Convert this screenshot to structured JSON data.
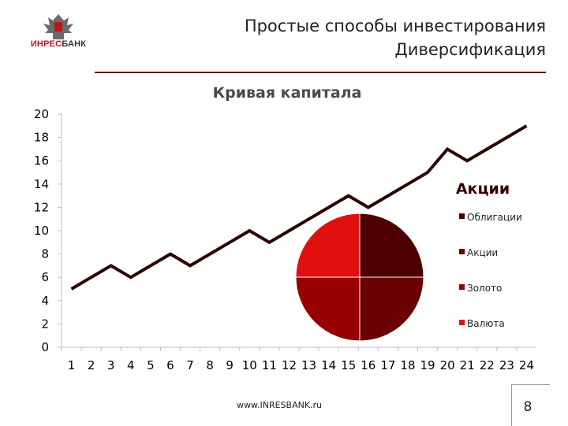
{
  "logo": {
    "text_red": "ИНРЕС",
    "text_dark": "БАНК"
  },
  "header": {
    "title_line1": "Простые способы инвестирования",
    "title_line2": "Диверсификация"
  },
  "footer": {
    "url": "www.INRESBANK.ru",
    "page": "8"
  },
  "colors": {
    "line": "#2b0000",
    "rule": "#5a0000"
  },
  "chart_data": [
    {
      "type": "line",
      "title": "Кривая капитала",
      "x": [
        1,
        2,
        3,
        4,
        5,
        6,
        7,
        8,
        9,
        10,
        11,
        12,
        13,
        14,
        15,
        16,
        17,
        18,
        19,
        20,
        21,
        22,
        23,
        24
      ],
      "categories": [
        "1",
        "2",
        "3",
        "4",
        "5",
        "6",
        "7",
        "8",
        "9",
        "10",
        "11",
        "12",
        "13",
        "14",
        "15",
        "16",
        "17",
        "18",
        "19",
        "20",
        "21",
        "22",
        "23",
        "24"
      ],
      "series": [
        {
          "values": [
            5,
            6,
            7,
            6,
            7,
            8,
            7,
            8,
            9,
            10,
            9,
            10,
            11,
            12,
            13,
            12,
            13,
            14,
            15,
            17,
            16,
            17,
            18,
            19
          ]
        }
      ],
      "yticks": [
        "0",
        "2",
        "4",
        "6",
        "8",
        "10",
        "12",
        "14",
        "16",
        "18",
        "20"
      ],
      "ylim": [
        0,
        20
      ],
      "grid": false,
      "xlabel": "",
      "ylabel": ""
    },
    {
      "type": "pie",
      "title": "Акции",
      "categories": [
        "Облигации",
        "Акции",
        "Золото",
        "Валюта"
      ],
      "values": [
        25,
        25,
        25,
        25
      ],
      "colors": [
        "#4d0000",
        "#6b0000",
        "#990000",
        "#e01010"
      ],
      "legend_position": "right"
    }
  ]
}
